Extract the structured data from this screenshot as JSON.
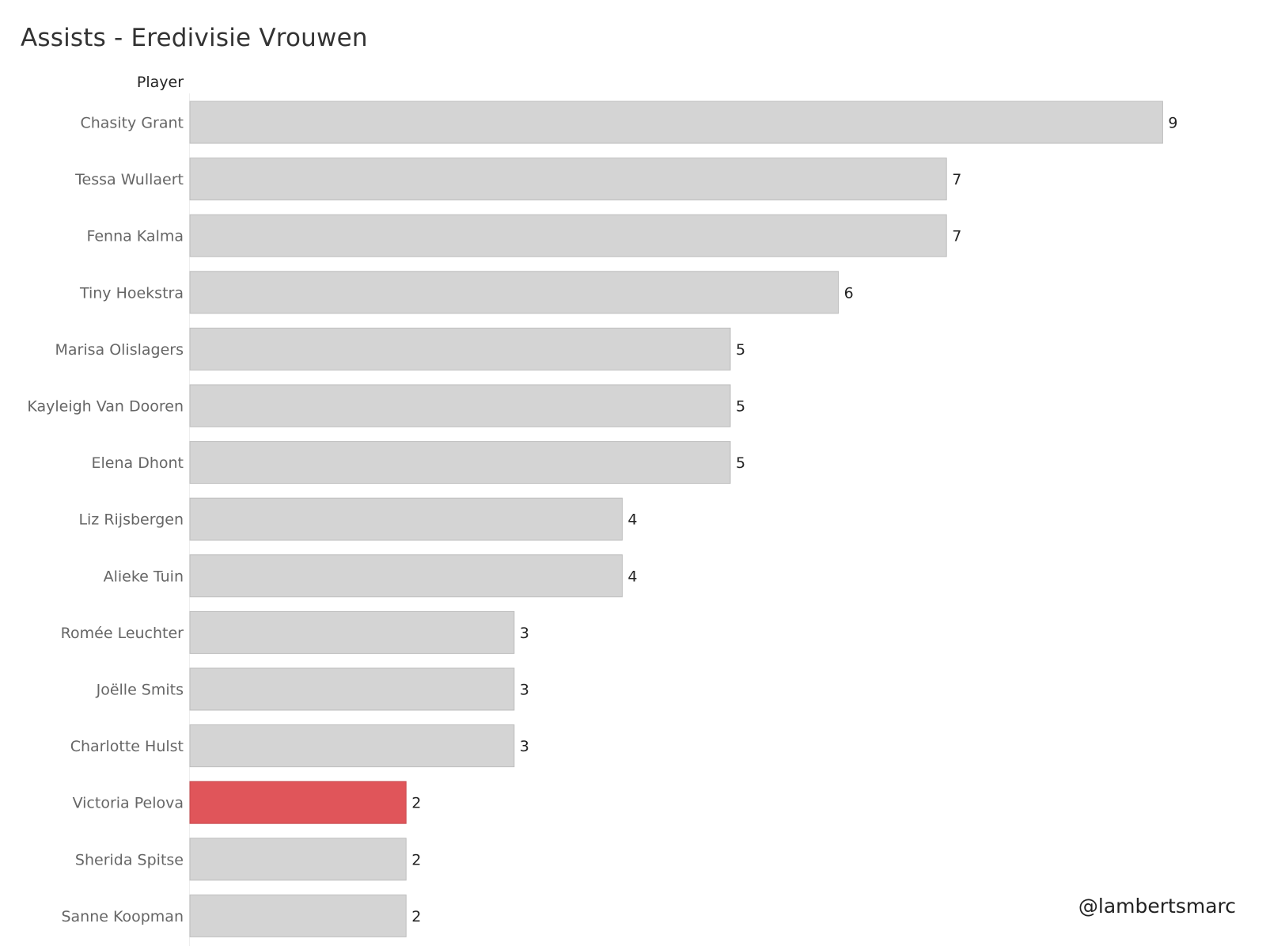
{
  "chart_data": {
    "type": "bar",
    "orientation": "horizontal",
    "title": "Assists - Eredivisie Vrouwen",
    "row_header": "Player",
    "categories": [
      "Chasity Grant",
      "Tessa Wullaert",
      "Fenna Kalma",
      "Tiny Hoekstra",
      "Marisa Olislagers",
      "Kayleigh Van Dooren",
      "Elena Dhont",
      "Liz Rijsbergen",
      "Alieke Tuin",
      "Romée Leuchter",
      "Joëlle Smits",
      "Charlotte Hulst",
      "Victoria Pelova",
      "Sherida Spitse",
      "Sanne Koopman"
    ],
    "values": [
      9,
      7,
      7,
      6,
      5,
      5,
      5,
      4,
      4,
      3,
      3,
      3,
      2,
      2,
      2
    ],
    "xlim": [
      0,
      9
    ],
    "grid": false,
    "data_labels": true,
    "highlight": "Victoria Pelova",
    "colors": {
      "bar": "#d4d4d4",
      "bar_stroke": "#bdbdbd",
      "highlight": "#e0555a",
      "highlight_stroke": "#c7494e",
      "category_label": "#666666",
      "value_label": "#222222"
    }
  },
  "watermark": "@lambertsmarc"
}
